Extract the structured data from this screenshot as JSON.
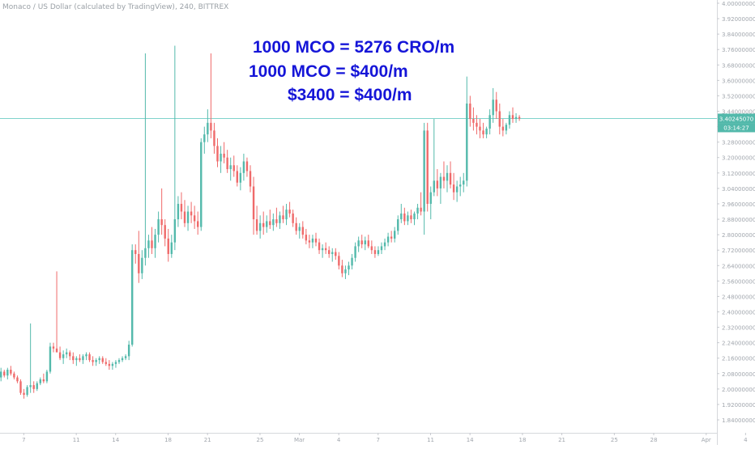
{
  "chart_data": {
    "type": "candlestick",
    "legend_text": "Monaco / US Dollar (calculated by TradingView), 240, BITTREX",
    "annotations": [
      "1000 MCO = 5276 CRO/m",
      "1000  MCO = $400/m",
      "$3400 = $400/m"
    ],
    "price_label": "3.40245070",
    "countdown_label": "03:14:27",
    "y_ticks": [
      1.84,
      1.92,
      2.0,
      2.08,
      2.16,
      2.24,
      2.32,
      2.4,
      2.48,
      2.56,
      2.64,
      2.72,
      2.8,
      2.88,
      2.96,
      3.04,
      3.12,
      3.2,
      3.28,
      3.36,
      3.44,
      3.52,
      3.6,
      3.68,
      3.76,
      3.84,
      3.92,
      4.0
    ],
    "ylim": [
      1.84,
      4.0
    ],
    "current_price": 3.4025,
    "x_ticks": [
      {
        "label": "7",
        "bar": 7
      },
      {
        "label": "11",
        "bar": 23
      },
      {
        "label": "14",
        "bar": 35
      },
      {
        "label": "18",
        "bar": 51
      },
      {
        "label": "21",
        "bar": 63
      },
      {
        "label": "25",
        "bar": 79
      },
      {
        "label": "Mar",
        "bar": 91
      },
      {
        "label": "4",
        "bar": 103
      },
      {
        "label": "7",
        "bar": 115
      },
      {
        "label": "11",
        "bar": 131
      },
      {
        "label": "14",
        "bar": 143
      },
      {
        "label": "18",
        "bar": 159
      },
      {
        "label": "21",
        "bar": 171
      },
      {
        "label": "25",
        "bar": 187
      },
      {
        "label": "28",
        "bar": 199
      },
      {
        "label": "Apr",
        "bar": 215
      },
      {
        "label": "4",
        "bar": 227
      }
    ],
    "ohlc": [
      [
        2.06,
        2.11,
        2.04,
        2.09
      ],
      [
        2.09,
        2.1,
        2.06,
        2.07
      ],
      [
        2.07,
        2.11,
        2.05,
        2.1
      ],
      [
        2.1,
        2.12,
        2.07,
        2.08
      ],
      [
        2.08,
        2.09,
        2.05,
        2.06
      ],
      [
        2.06,
        2.07,
        2.03,
        2.04
      ],
      [
        2.04,
        2.05,
        1.97,
        1.98
      ],
      [
        1.98,
        2.0,
        1.95,
        1.97
      ],
      [
        1.97,
        2.02,
        1.96,
        2.01
      ],
      [
        2.01,
        2.34,
        1.98,
        2.02
      ],
      [
        2.02,
        2.04,
        1.98,
        2.0
      ],
      [
        2.0,
        2.04,
        1.99,
        2.03
      ],
      [
        2.03,
        2.06,
        2.02,
        2.05
      ],
      [
        2.05,
        2.08,
        2.03,
        2.04
      ],
      [
        2.04,
        2.1,
        2.03,
        2.09
      ],
      [
        2.09,
        2.24,
        2.08,
        2.22
      ],
      [
        2.22,
        2.24,
        2.19,
        2.21
      ],
      [
        2.21,
        2.61,
        2.2,
        2.19
      ],
      [
        2.19,
        2.22,
        2.15,
        2.16
      ],
      [
        2.16,
        2.2,
        2.13,
        2.18
      ],
      [
        2.18,
        2.21,
        2.16,
        2.19
      ],
      [
        2.19,
        2.2,
        2.15,
        2.17
      ],
      [
        2.17,
        2.19,
        2.13,
        2.15
      ],
      [
        2.15,
        2.17,
        2.12,
        2.16
      ],
      [
        2.16,
        2.18,
        2.14,
        2.15
      ],
      [
        2.15,
        2.18,
        2.13,
        2.17
      ],
      [
        2.17,
        2.19,
        2.15,
        2.18
      ],
      [
        2.18,
        2.19,
        2.14,
        2.15
      ],
      [
        2.15,
        2.17,
        2.12,
        2.14
      ],
      [
        2.14,
        2.16,
        2.12,
        2.15
      ],
      [
        2.15,
        2.17,
        2.13,
        2.16
      ],
      [
        2.16,
        2.17,
        2.13,
        2.14
      ],
      [
        2.14,
        2.16,
        2.12,
        2.13
      ],
      [
        2.13,
        2.15,
        2.1,
        2.12
      ],
      [
        2.12,
        2.14,
        2.1,
        2.13
      ],
      [
        2.13,
        2.15,
        2.11,
        2.14
      ],
      [
        2.14,
        2.16,
        2.13,
        2.15
      ],
      [
        2.15,
        2.17,
        2.14,
        2.16
      ],
      [
        2.16,
        2.18,
        2.15,
        2.17
      ],
      [
        2.17,
        2.25,
        2.15,
        2.23
      ],
      [
        2.23,
        2.75,
        2.22,
        2.72
      ],
      [
        2.72,
        2.75,
        2.65,
        2.7
      ],
      [
        2.7,
        2.82,
        2.55,
        2.6
      ],
      [
        2.6,
        2.72,
        2.57,
        2.68
      ],
      [
        2.68,
        3.74,
        2.64,
        2.73
      ],
      [
        2.73,
        2.8,
        2.68,
        2.77
      ],
      [
        2.77,
        2.84,
        2.7,
        2.73
      ],
      [
        2.73,
        2.83,
        2.68,
        2.8
      ],
      [
        2.8,
        2.92,
        2.76,
        2.88
      ],
      [
        2.88,
        3.04,
        2.8,
        2.85
      ],
      [
        2.85,
        2.88,
        2.74,
        2.78
      ],
      [
        2.78,
        2.83,
        2.66,
        2.7
      ],
      [
        2.7,
        2.8,
        2.68,
        2.76
      ],
      [
        2.76,
        3.78,
        2.72,
        2.88
      ],
      [
        2.88,
        3.0,
        2.84,
        2.96
      ],
      [
        2.96,
        3.02,
        2.88,
        2.92
      ],
      [
        2.92,
        2.98,
        2.84,
        2.86
      ],
      [
        2.86,
        2.95,
        2.82,
        2.92
      ],
      [
        2.92,
        2.97,
        2.86,
        2.9
      ],
      [
        2.9,
        2.95,
        2.83,
        2.87
      ],
      [
        2.87,
        2.92,
        2.8,
        2.84
      ],
      [
        2.84,
        3.3,
        2.82,
        3.28
      ],
      [
        3.28,
        3.36,
        3.22,
        3.32
      ],
      [
        3.32,
        3.45,
        3.28,
        3.38
      ],
      [
        3.38,
        3.74,
        3.3,
        3.34
      ],
      [
        3.34,
        3.38,
        3.22,
        3.26
      ],
      [
        3.26,
        3.3,
        3.15,
        3.18
      ],
      [
        3.18,
        3.26,
        3.12,
        3.22
      ],
      [
        3.22,
        3.28,
        3.17,
        3.2
      ],
      [
        3.2,
        3.24,
        3.12,
        3.14
      ],
      [
        3.14,
        3.2,
        3.08,
        3.16
      ],
      [
        3.16,
        3.21,
        3.1,
        3.13
      ],
      [
        3.13,
        3.16,
        3.05,
        3.07
      ],
      [
        3.07,
        3.15,
        3.03,
        3.12
      ],
      [
        3.12,
        3.22,
        3.08,
        3.18
      ],
      [
        3.18,
        3.2,
        3.1,
        3.13
      ],
      [
        3.13,
        3.16,
        3.02,
        3.05
      ],
      [
        3.05,
        3.1,
        2.8,
        2.88
      ],
      [
        2.88,
        2.95,
        2.8,
        2.82
      ],
      [
        2.82,
        2.9,
        2.78,
        2.86
      ],
      [
        2.86,
        2.92,
        2.8,
        2.84
      ],
      [
        2.84,
        2.9,
        2.81,
        2.87
      ],
      [
        2.87,
        2.93,
        2.83,
        2.85
      ],
      [
        2.85,
        2.91,
        2.82,
        2.88
      ],
      [
        2.88,
        2.94,
        2.84,
        2.86
      ],
      [
        2.86,
        2.92,
        2.83,
        2.9
      ],
      [
        2.9,
        2.95,
        2.86,
        2.88
      ],
      [
        2.88,
        2.96,
        2.85,
        2.93
      ],
      [
        2.93,
        2.97,
        2.89,
        2.91
      ],
      [
        2.91,
        2.93,
        2.84,
        2.86
      ],
      [
        2.86,
        2.89,
        2.8,
        2.82
      ],
      [
        2.82,
        2.86,
        2.78,
        2.84
      ],
      [
        2.84,
        2.87,
        2.78,
        2.8
      ],
      [
        2.8,
        2.83,
        2.75,
        2.77
      ],
      [
        2.77,
        2.8,
        2.73,
        2.76
      ],
      [
        2.76,
        2.8,
        2.73,
        2.78
      ],
      [
        2.78,
        2.81,
        2.74,
        2.76
      ],
      [
        2.76,
        2.78,
        2.7,
        2.72
      ],
      [
        2.72,
        2.75,
        2.68,
        2.73
      ],
      [
        2.73,
        2.76,
        2.7,
        2.72
      ],
      [
        2.72,
        2.74,
        2.68,
        2.7
      ],
      [
        2.7,
        2.73,
        2.66,
        2.71
      ],
      [
        2.71,
        2.73,
        2.67,
        2.69
      ],
      [
        2.69,
        2.71,
        2.62,
        2.64
      ],
      [
        2.64,
        2.67,
        2.58,
        2.6
      ],
      [
        2.6,
        2.64,
        2.57,
        2.62
      ],
      [
        2.62,
        2.66,
        2.59,
        2.64
      ],
      [
        2.64,
        2.7,
        2.62,
        2.68
      ],
      [
        2.68,
        2.76,
        2.66,
        2.74
      ],
      [
        2.74,
        2.79,
        2.71,
        2.77
      ],
      [
        2.77,
        2.8,
        2.73,
        2.75
      ],
      [
        2.75,
        2.79,
        2.72,
        2.77
      ],
      [
        2.77,
        2.8,
        2.73,
        2.74
      ],
      [
        2.74,
        2.77,
        2.7,
        2.72
      ],
      [
        2.72,
        2.74,
        2.68,
        2.7
      ],
      [
        2.7,
        2.74,
        2.69,
        2.72
      ],
      [
        2.72,
        2.76,
        2.7,
        2.74
      ],
      [
        2.74,
        2.78,
        2.72,
        2.76
      ],
      [
        2.76,
        2.81,
        2.74,
        2.79
      ],
      [
        2.79,
        2.82,
        2.76,
        2.78
      ],
      [
        2.78,
        2.84,
        2.76,
        2.82
      ],
      [
        2.82,
        2.9,
        2.8,
        2.88
      ],
      [
        2.88,
        2.96,
        2.86,
        2.91
      ],
      [
        2.91,
        2.94,
        2.85,
        2.87
      ],
      [
        2.87,
        2.92,
        2.85,
        2.9
      ],
      [
        2.9,
        2.93,
        2.86,
        2.88
      ],
      [
        2.88,
        2.92,
        2.85,
        2.91
      ],
      [
        2.91,
        2.96,
        2.88,
        2.94
      ],
      [
        2.94,
        3.02,
        2.9,
        2.92
      ],
      [
        2.92,
        3.38,
        2.8,
        3.34
      ],
      [
        3.34,
        3.38,
        2.92,
        2.96
      ],
      [
        2.96,
        3.05,
        2.88,
        3.02
      ],
      [
        3.02,
        3.4,
        3.0,
        3.08
      ],
      [
        3.08,
        3.14,
        3.0,
        3.04
      ],
      [
        3.04,
        3.12,
        2.96,
        3.1
      ],
      [
        3.1,
        3.18,
        3.04,
        3.08
      ],
      [
        3.08,
        3.16,
        3.02,
        3.12
      ],
      [
        3.12,
        3.18,
        3.04,
        3.06
      ],
      [
        3.06,
        3.12,
        2.98,
        3.02
      ],
      [
        3.02,
        3.08,
        2.97,
        3.05
      ],
      [
        3.05,
        3.1,
        3.0,
        3.06
      ],
      [
        3.06,
        3.12,
        3.02,
        3.08
      ],
      [
        3.08,
        3.62,
        3.05,
        3.48
      ],
      [
        3.48,
        3.52,
        3.36,
        3.4
      ],
      [
        3.4,
        3.46,
        3.34,
        3.38
      ],
      [
        3.38,
        3.42,
        3.32,
        3.36
      ],
      [
        3.36,
        3.4,
        3.3,
        3.34
      ],
      [
        3.34,
        3.38,
        3.3,
        3.32
      ],
      [
        3.32,
        3.36,
        3.3,
        3.35
      ],
      [
        3.35,
        3.45,
        3.32,
        3.42
      ],
      [
        3.42,
        3.56,
        3.38,
        3.5
      ],
      [
        3.5,
        3.54,
        3.4,
        3.44
      ],
      [
        3.44,
        3.48,
        3.32,
        3.36
      ],
      [
        3.36,
        3.4,
        3.31,
        3.34
      ],
      [
        3.34,
        3.38,
        3.32,
        3.37
      ],
      [
        3.37,
        3.44,
        3.35,
        3.42
      ],
      [
        3.42,
        3.46,
        3.38,
        3.4
      ],
      [
        3.4,
        3.43,
        3.38,
        3.41
      ],
      [
        3.41,
        3.42,
        3.39,
        3.4025
      ]
    ]
  }
}
